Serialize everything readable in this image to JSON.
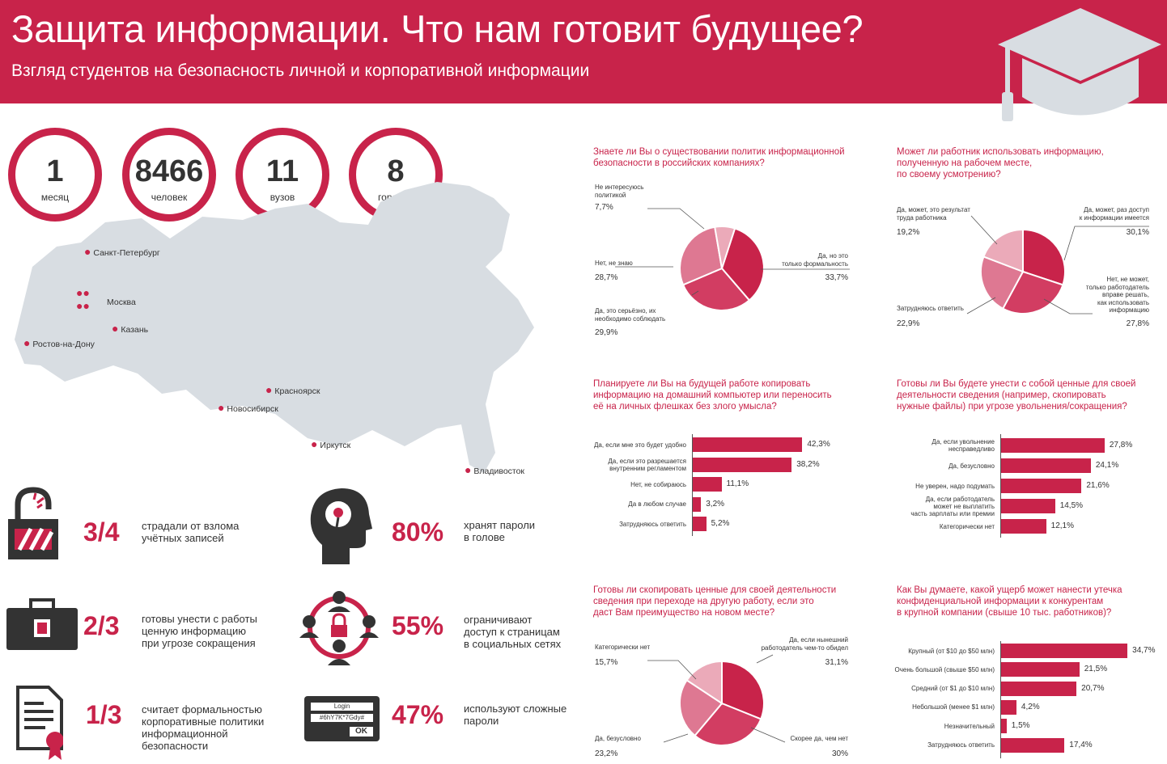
{
  "header": {
    "title": "Защита информации. Что нам готовит будущее?",
    "subtitle": "Взгляд студентов на безопасность личной и корпоративной информации"
  },
  "colors": {
    "accent": "#c8234a",
    "mid": "#db5874",
    "light": "#e9a2b2",
    "map": "#d8dde2"
  },
  "stats": [
    {
      "num": "1",
      "label": "месяц"
    },
    {
      "num": "8466",
      "label": "человек"
    },
    {
      "num": "11",
      "label": "вузов"
    },
    {
      "num": "8",
      "label": "городов"
    }
  ],
  "cities": [
    "Санкт-Петербург",
    "Москва",
    "Казань",
    "Ростов-на-Дону",
    "Красноярск",
    "Новосибирск",
    "Иркутск",
    "Владивосток"
  ],
  "facts": [
    {
      "value": "3/4",
      "text": "страдали от взлома\nучётных записей",
      "icon": "broken-lock-icon"
    },
    {
      "value": "80%",
      "text": "хранят пароли\nв голове",
      "icon": "head-brain-icon"
    },
    {
      "value": "2/3",
      "text": "готовы унести с работы\nценную информацию\nпри угрозе сокращения",
      "icon": "briefcase-icon"
    },
    {
      "value": "55%",
      "text": "ограничивают\nдоступ к страницам\nв социальных сетях",
      "icon": "people-lock-icon"
    },
    {
      "value": "1/3",
      "text": "считает формальностью\nкорпоративные политики\nинформационной\nбезопасности",
      "icon": "certificate-document-icon"
    },
    {
      "value": "47%",
      "text": "используют сложные\nпароли",
      "icon": "login-password-icon"
    }
  ],
  "login_box": {
    "title": "Login",
    "password": "#6hY7K*7Gdy#",
    "button": "OK"
  },
  "chart_data": [
    {
      "type": "pie",
      "title": "Знаете ли Вы о существовании политик информационной\nбезопасности в российских компаниях?",
      "slices": [
        {
          "label": "Да, но это\nтолько формальность",
          "value": 33.7,
          "display": "33,7%"
        },
        {
          "label": "Да, это серьёзно, их\nнеобходимо соблюдать",
          "value": 29.9,
          "display": "29,9%"
        },
        {
          "label": "Нет, не знаю",
          "value": 28.7,
          "display": "28,7%"
        },
        {
          "label": "Не интересуюсь\nполитикой",
          "value": 7.7,
          "display": "7,7%"
        }
      ]
    },
    {
      "type": "pie",
      "title": "Может ли работник использовать информацию,\nполученную на рабочем месте,\nпо своему усмотрению?",
      "slices": [
        {
          "label": "Да, может, раз доступ\nк информации имеется",
          "value": 30.1,
          "display": "30,1%"
        },
        {
          "label": "Нет, не может,\nтолько работодатель\nвправе решать,\nкак использовать\nинформацию",
          "value": 27.8,
          "display": "27,8%"
        },
        {
          "label": "Затрудняюсь ответить",
          "value": 22.9,
          "display": "22,9%"
        },
        {
          "label": "Да, может, это результат\nтруда работника",
          "value": 19.2,
          "display": "19,2%"
        }
      ]
    },
    {
      "type": "bar",
      "title": "Планируете ли Вы на будущей работе копировать\nинформацию на домашний компьютер или переносить\nеё на личных флешках без злого умысла?",
      "categories": [
        "Да, если мне это будет удобно",
        "Да, если это разрешается\nвнутренним регламентом",
        "Нет, не собираюсь",
        "Да в любом случае",
        "Затрудняюсь ответить"
      ],
      "values": [
        42.3,
        38.2,
        11.1,
        3.2,
        5.2
      ],
      "display": [
        "42,3%",
        "38,2%",
        "11,1%",
        "3,2%",
        "5,2%"
      ]
    },
    {
      "type": "bar",
      "title": "Готовы ли Вы будете унести с собой ценные для своей\nдеятельности сведения (например, скопировать\nнужные файлы) при угрозе увольнения/сокращения?",
      "categories": [
        "Да, если увольнение\nнесправедливо",
        "Да, безусловно",
        "Не уверен, надо подумать",
        "Да, если работодатель\nможет не выплатить\nчасть зарплаты или премии",
        "Категорически нет"
      ],
      "values": [
        27.8,
        24.1,
        21.6,
        14.5,
        12.1
      ],
      "display": [
        "27,8%",
        "24,1%",
        "21,6%",
        "14,5%",
        "12,1%"
      ]
    },
    {
      "type": "pie",
      "title": "Готовы ли скопировать ценные для своей деятельности\nсведения при переходе на другую работу, если это\nдаст Вам преимущество на новом месте?",
      "slices": [
        {
          "label": "Да, если нынешний\nработодатель чем-то обидел",
          "value": 31.1,
          "display": "31,1%"
        },
        {
          "label": "Скорее да, чем нет",
          "value": 30,
          "display": "30%"
        },
        {
          "label": "Да, безусловно",
          "value": 23.2,
          "display": "23,2%"
        },
        {
          "label": "Категорически нет",
          "value": 15.7,
          "display": "15,7%"
        }
      ]
    },
    {
      "type": "bar",
      "title": "Как Вы думаете, какой ущерб может нанести утечка\nконфиденциальной информации к конкурентам\nв крупной компании (свыше 10 тыс. работников)?",
      "categories": [
        "Крупный (от $10 до $50 млн)",
        "Очень большой (свыше $50 млн)",
        "Средний (от $1 до $10 млн)",
        "Небольшой (менее $1 млн)",
        "Незначительный",
        "Затрудняюсь ответить"
      ],
      "values": [
        34.7,
        21.5,
        20.7,
        4.2,
        1.5,
        17.4
      ],
      "display": [
        "34,7%",
        "21,5%",
        "20,7%",
        "4,2%",
        "1,5%",
        "17,4%"
      ]
    }
  ]
}
